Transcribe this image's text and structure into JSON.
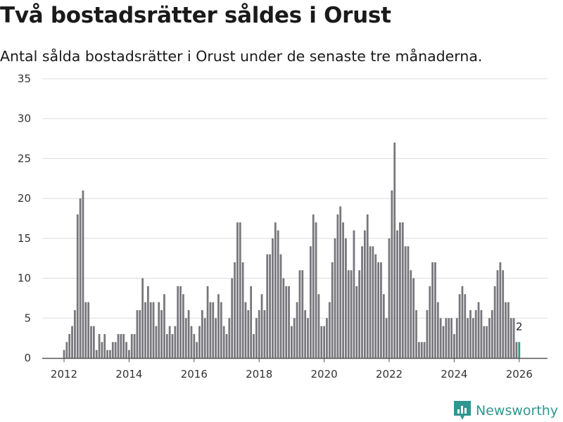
{
  "header": {
    "title": "Två bostadsrätter såldes i Orust",
    "subtitle": "Antal sålda bostadsrätter i Orust under de senaste tre månaderna."
  },
  "brand": {
    "name": "Newsworthy"
  },
  "colors": {
    "bar": "#77767b",
    "highlight": "#2a9d8f",
    "grid": "#dddddd",
    "axis": "#555555",
    "brand": "#2f9690"
  },
  "chart_data": {
    "type": "bar",
    "title": "Två bostadsrätter såldes i Orust",
    "subtitle": "Antal sålda bostadsrätter i Orust under de senaste tre månaderna.",
    "xlabel": "",
    "ylabel": "",
    "ylim": [
      0,
      35
    ],
    "yticks": [
      "0",
      "5",
      "10",
      "15",
      "20",
      "25",
      "30",
      "35"
    ],
    "xticks": [
      "2012",
      "2014",
      "2016",
      "2018",
      "2020",
      "2022",
      "2024",
      "2026"
    ],
    "x_start": "2012-01",
    "grid": true,
    "values": [
      1,
      2,
      3,
      4,
      6,
      18,
      20,
      21,
      7,
      7,
      4,
      4,
      1,
      3,
      2,
      3,
      1,
      1,
      2,
      2,
      3,
      3,
      3,
      2,
      1,
      3,
      3,
      6,
      6,
      10,
      7,
      9,
      7,
      7,
      4,
      7,
      6,
      8,
      3,
      4,
      3,
      4,
      9,
      9,
      8,
      5,
      6,
      4,
      3,
      2,
      4,
      6,
      5,
      9,
      7,
      7,
      5,
      8,
      7,
      4,
      3,
      5,
      10,
      12,
      17,
      17,
      12,
      7,
      6,
      9,
      3,
      5,
      6,
      8,
      6,
      13,
      13,
      15,
      17,
      16,
      13,
      10,
      9,
      9,
      4,
      5,
      7,
      11,
      11,
      6,
      5,
      14,
      18,
      17,
      8,
      4,
      4,
      5,
      7,
      12,
      15,
      18,
      19,
      17,
      15,
      11,
      11,
      16,
      9,
      11,
      14,
      16,
      18,
      14,
      14,
      13,
      12,
      12,
      8,
      5,
      15,
      21,
      27,
      16,
      17,
      17,
      14,
      14,
      11,
      10,
      6,
      2,
      2,
      2,
      6,
      9,
      12,
      12,
      7,
      5,
      4,
      5,
      5,
      5,
      3,
      5,
      8,
      9,
      8,
      5,
      6,
      5,
      6,
      7,
      6,
      4,
      4,
      5,
      6,
      9,
      11,
      12,
      11,
      7,
      7,
      5,
      5,
      2,
      2
    ],
    "highlight_last": 1,
    "annotation": {
      "text": "2",
      "value": 2
    }
  }
}
